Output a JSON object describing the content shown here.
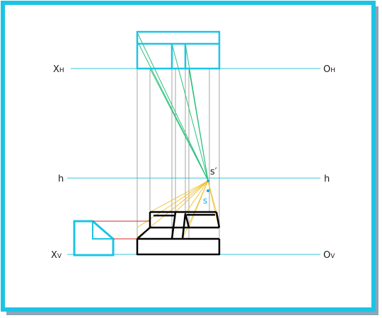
{
  "colors": {
    "frame": "#1cc4e4",
    "frame_shadow": "#8aa6b8",
    "axis": "#36c6d8",
    "object": "#000000",
    "proj_vertical": "#8f8f8f",
    "rays_plan": "#2bbf7a",
    "rays_elev": "#f0c030",
    "ref_lines": "#d02a2a",
    "station_point": "#19a8d6"
  },
  "labels": {
    "xh": {
      "main": "X",
      "sub": "H"
    },
    "oh": {
      "main": "O",
      "sub": "H"
    },
    "h_left": "h",
    "h_right": "h",
    "xv": {
      "main": "X",
      "sub": "V"
    },
    "ov": {
      "main": "O",
      "sub": "V"
    },
    "s_prime": "s′",
    "s": "s"
  }
}
